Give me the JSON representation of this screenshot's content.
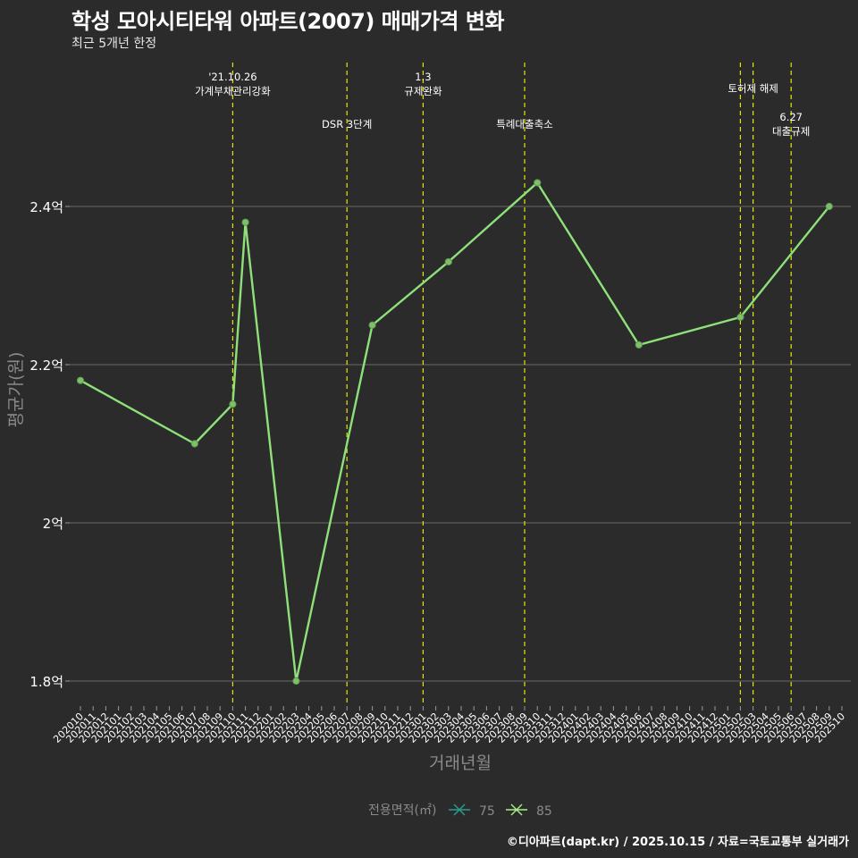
{
  "title": "학성 모아시티타워 아파트(2007) 매매가격 변화",
  "subtitle": "최근 5개년 한정",
  "caption": "©디아파트(dapt.kr) / 2025.10.15 / 자료=국토교통부 실거래가",
  "chart_data": {
    "type": "line",
    "ylabel": "평균가(원)",
    "xlabel": "거래년월",
    "ylim": [
      1.77,
      2.55
    ],
    "yticks": [
      1.8,
      2.0,
      2.2,
      2.4
    ],
    "ytick_labels": [
      "1.8억",
      "2억",
      "2.2억",
      "2.4억"
    ],
    "categories": [
      "202010",
      "202011",
      "202012",
      "202101",
      "202102",
      "202103",
      "202104",
      "202105",
      "202106",
      "202107",
      "202108",
      "202109",
      "202110",
      "202111",
      "202112",
      "202201",
      "202202",
      "202203",
      "202204",
      "202205",
      "202206",
      "202207",
      "202208",
      "202209",
      "202210",
      "202211",
      "202212",
      "202301",
      "202302",
      "202303",
      "202304",
      "202305",
      "202306",
      "202307",
      "202308",
      "202309",
      "202310",
      "202311",
      "202312",
      "202401",
      "202402",
      "202403",
      "202404",
      "202405",
      "202406",
      "202407",
      "202408",
      "202409",
      "202410",
      "202411",
      "202412",
      "202501",
      "202502",
      "202503",
      "202504",
      "202505",
      "202506",
      "202507",
      "202508",
      "202509",
      "202510"
    ],
    "legend": {
      "title": "전용면적(㎡)",
      "position": "bottom",
      "items": [
        {
          "label": "75",
          "color": "#2a9d8f"
        },
        {
          "label": "85",
          "color": "#a6ef8c"
        }
      ]
    },
    "series": [
      {
        "name": "85",
        "color": "#8ee07a",
        "points": [
          {
            "x": "202010",
            "y": 2.18
          },
          {
            "x": "202107",
            "y": 2.1
          },
          {
            "x": "202110",
            "y": 2.15
          },
          {
            "x": "202111",
            "y": 2.38
          },
          {
            "x": "202203",
            "y": 1.8
          },
          {
            "x": "202209",
            "y": 2.25
          },
          {
            "x": "202303",
            "y": 2.33
          },
          {
            "x": "202310",
            "y": 2.43
          },
          {
            "x": "202406",
            "y": 2.225
          },
          {
            "x": "202502",
            "y": 2.26
          },
          {
            "x": "202509",
            "y": 2.4
          }
        ]
      }
    ],
    "events": [
      {
        "x": "202110",
        "lines": [
          "'21.10.26",
          "가계부채관리강화"
        ],
        "row": 0
      },
      {
        "x": "202207",
        "lines": [
          "DSR 3단계"
        ],
        "row": 1
      },
      {
        "x": "202301",
        "lines": [
          "1.3",
          "규제완화"
        ],
        "row": 0
      },
      {
        "x": "202309",
        "lines": [
          "특례대출축소"
        ],
        "row": 1
      },
      {
        "x": "202502",
        "lines": [],
        "row": 0
      },
      {
        "x": "202503",
        "lines": [
          "토허제 해제"
        ],
        "row": 0
      },
      {
        "x": "202506",
        "lines": [
          "6.27",
          "대출규제"
        ],
        "row": 2
      }
    ],
    "event_line_color": "#e6e600"
  }
}
